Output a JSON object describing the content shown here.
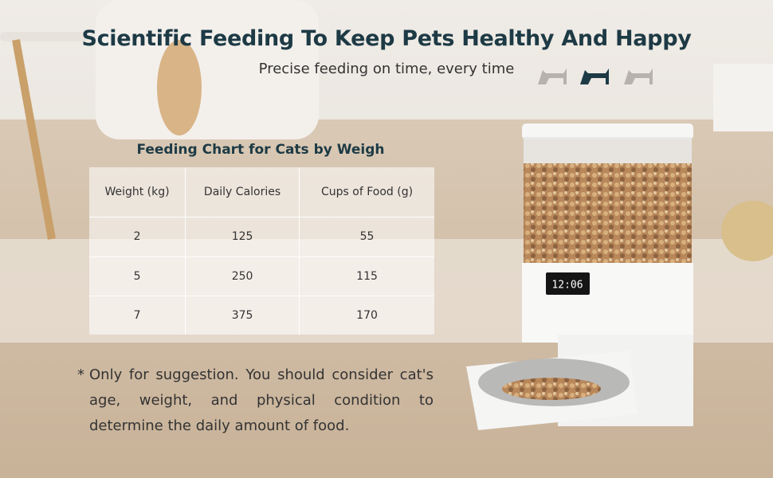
{
  "header": {
    "title": "Scientific Feeding To Keep Pets Healthy And Happy",
    "subtitle": "Precise feeding on time, every time"
  },
  "table": {
    "title": "Feeding Chart for Cats by Weigh",
    "columns": [
      "Weight (kg)",
      "Daily Calories",
      "Cups of Food (g)"
    ],
    "rows": [
      [
        2,
        125,
        55
      ],
      [
        5,
        250,
        115
      ],
      [
        7,
        375,
        170
      ]
    ]
  },
  "note": {
    "marker": "*",
    "text": "Only for suggestion. You should consider cat's age, weight, and physical condition to determine the daily amount of food."
  },
  "device": {
    "display": "12:06"
  }
}
